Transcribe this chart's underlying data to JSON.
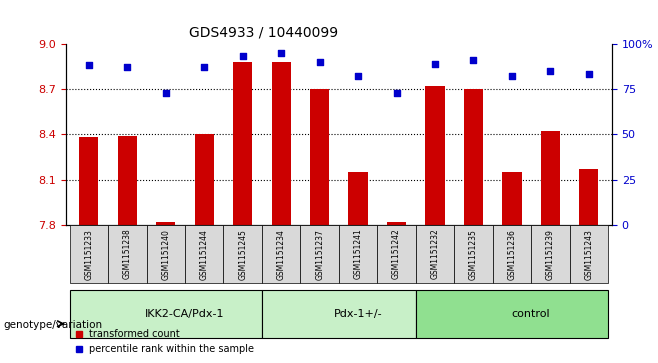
{
  "title": "GDS4933 / 10440099",
  "samples": [
    "GSM1151233",
    "GSM1151238",
    "GSM1151240",
    "GSM1151244",
    "GSM1151245",
    "GSM1151234",
    "GSM1151237",
    "GSM1151241",
    "GSM1151242",
    "GSM1151232",
    "GSM1151235",
    "GSM1151236",
    "GSM1151239",
    "GSM1151243"
  ],
  "bar_values": [
    8.38,
    8.39,
    7.82,
    8.4,
    8.88,
    8.88,
    8.7,
    8.15,
    7.82,
    8.72,
    8.7,
    8.15,
    8.42,
    8.17
  ],
  "dot_values": [
    88,
    87,
    73,
    87,
    93,
    95,
    90,
    82,
    73,
    89,
    91,
    82,
    85,
    83
  ],
  "groups": [
    {
      "label": "IKK2-CA/Pdx-1",
      "start": 0,
      "end": 5
    },
    {
      "label": "Pdx-1+/-",
      "start": 5,
      "end": 9
    },
    {
      "label": "control",
      "start": 9,
      "end": 14
    }
  ],
  "ylim_left": [
    7.8,
    9.0
  ],
  "ylim_right": [
    0,
    100
  ],
  "yticks_left": [
    7.8,
    8.1,
    8.4,
    8.7,
    9.0
  ],
  "yticks_right": [
    0,
    25,
    50,
    75,
    100
  ],
  "ytick_labels_right": [
    "0",
    "25",
    "50",
    "75",
    "100%"
  ],
  "bar_color": "#cc0000",
  "dot_color": "#0000cc",
  "background_plot": "#ffffff",
  "background_xticklabels": "#d9d9d9",
  "background_group_light": "#c8f0c8",
  "background_group_dark": "#90e090",
  "dotted_line_color": "#000000",
  "axis_label_color_left": "#cc0000",
  "axis_label_color_right": "#0000cc",
  "legend_text": [
    "transformed count",
    "percentile rank within the sample"
  ],
  "genotype_label": "genotype/variation",
  "bar_width": 0.5
}
